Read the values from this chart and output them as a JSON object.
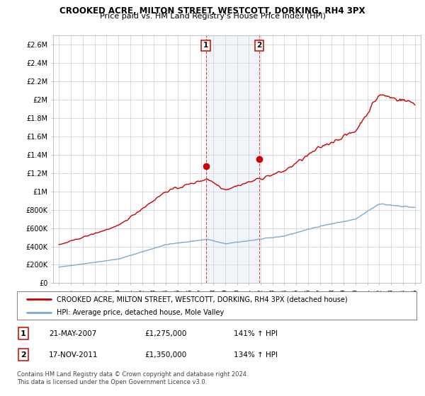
{
  "title": "CROOKED ACRE, MILTON STREET, WESTCOTT, DORKING, RH4 3PX",
  "subtitle": "Price paid vs. HM Land Registry's House Price Index (HPI)",
  "ylim": [
    0,
    2700000
  ],
  "yticks": [
    0,
    200000,
    400000,
    600000,
    800000,
    1000000,
    1200000,
    1400000,
    1600000,
    1800000,
    2000000,
    2200000,
    2400000,
    2600000
  ],
  "ytick_labels": [
    "£0",
    "£200K",
    "£400K",
    "£600K",
    "£800K",
    "£1M",
    "£1.2M",
    "£1.4M",
    "£1.6M",
    "£1.8M",
    "£2M",
    "£2.2M",
    "£2.4M",
    "£2.6M"
  ],
  "hpi_color": "#7aaad4",
  "price_color": "#cc0000",
  "purchase1_date": 2007.38,
  "purchase1_price": 1275000,
  "purchase2_date": 2011.88,
  "purchase2_price": 1350000,
  "legend_line1": "CROOKED ACRE, MILTON STREET, WESTCOTT, DORKING, RH4 3PX (detached house)",
  "legend_line2": "HPI: Average price, detached house, Mole Valley",
  "table_row1": [
    "1",
    "21-MAY-2007",
    "£1,275,000",
    "141% ↑ HPI"
  ],
  "table_row2": [
    "2",
    "17-NOV-2011",
    "£1,350,000",
    "134% ↑ HPI"
  ],
  "footer": "Contains HM Land Registry data © Crown copyright and database right 2024.\nThis data is licensed under the Open Government Licence v3.0.",
  "background_color": "#ffffff",
  "grid_color": "#cccccc",
  "shade_color": "#c8d8ee",
  "vline_color": "#cc0000"
}
